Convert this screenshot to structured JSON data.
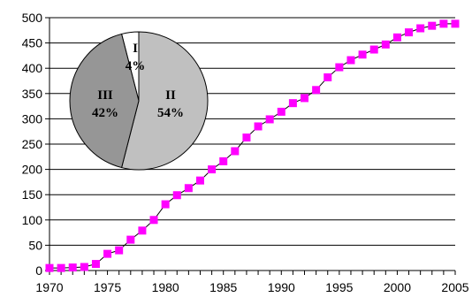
{
  "chart_data": [
    {
      "type": "line",
      "x": [
        1970,
        1971,
        1972,
        1973,
        1974,
        1975,
        1976,
        1977,
        1978,
        1979,
        1980,
        1981,
        1982,
        1983,
        1984,
        1985,
        1986,
        1987,
        1988,
        1989,
        1990,
        1991,
        1992,
        1993,
        1994,
        1995,
        1996,
        1997,
        1998,
        1999,
        2000,
        2001,
        2002,
        2003,
        2004,
        2005
      ],
      "series": [
        {
          "values": [
            5,
            5,
            6,
            7,
            13,
            33,
            40,
            61,
            79,
            100,
            131,
            149,
            163,
            178,
            200,
            216,
            236,
            263,
            285,
            299,
            314,
            331,
            341,
            357,
            382,
            402,
            416,
            427,
            437,
            447,
            461,
            471,
            479,
            484,
            488,
            488
          ],
          "color": "#ff00ff",
          "line_color": "#000000",
          "marker": "square"
        }
      ],
      "xlim": [
        1970,
        2005
      ],
      "ylim": [
        0,
        500
      ],
      "xticks": [
        "1970",
        "1975",
        "1980",
        "1985",
        "1990",
        "1995",
        "2000",
        "2005"
      ],
      "yticks": [
        "0",
        "50",
        "100",
        "150",
        "200",
        "250",
        "300",
        "350",
        "400",
        "450",
        "500"
      ],
      "grid": "horizontal",
      "xlabel": "",
      "ylabel": "",
      "title": ""
    },
    {
      "type": "pie",
      "slices": [
        {
          "label": "I",
          "percent_label": "4%",
          "value": 4,
          "color": "#ffffff"
        },
        {
          "label": "II",
          "percent_label": "54%",
          "value": 54,
          "color": "#c0c0c0"
        },
        {
          "label": "III",
          "percent_label": "42%",
          "value": 42,
          "color": "#969696"
        }
      ]
    }
  ]
}
